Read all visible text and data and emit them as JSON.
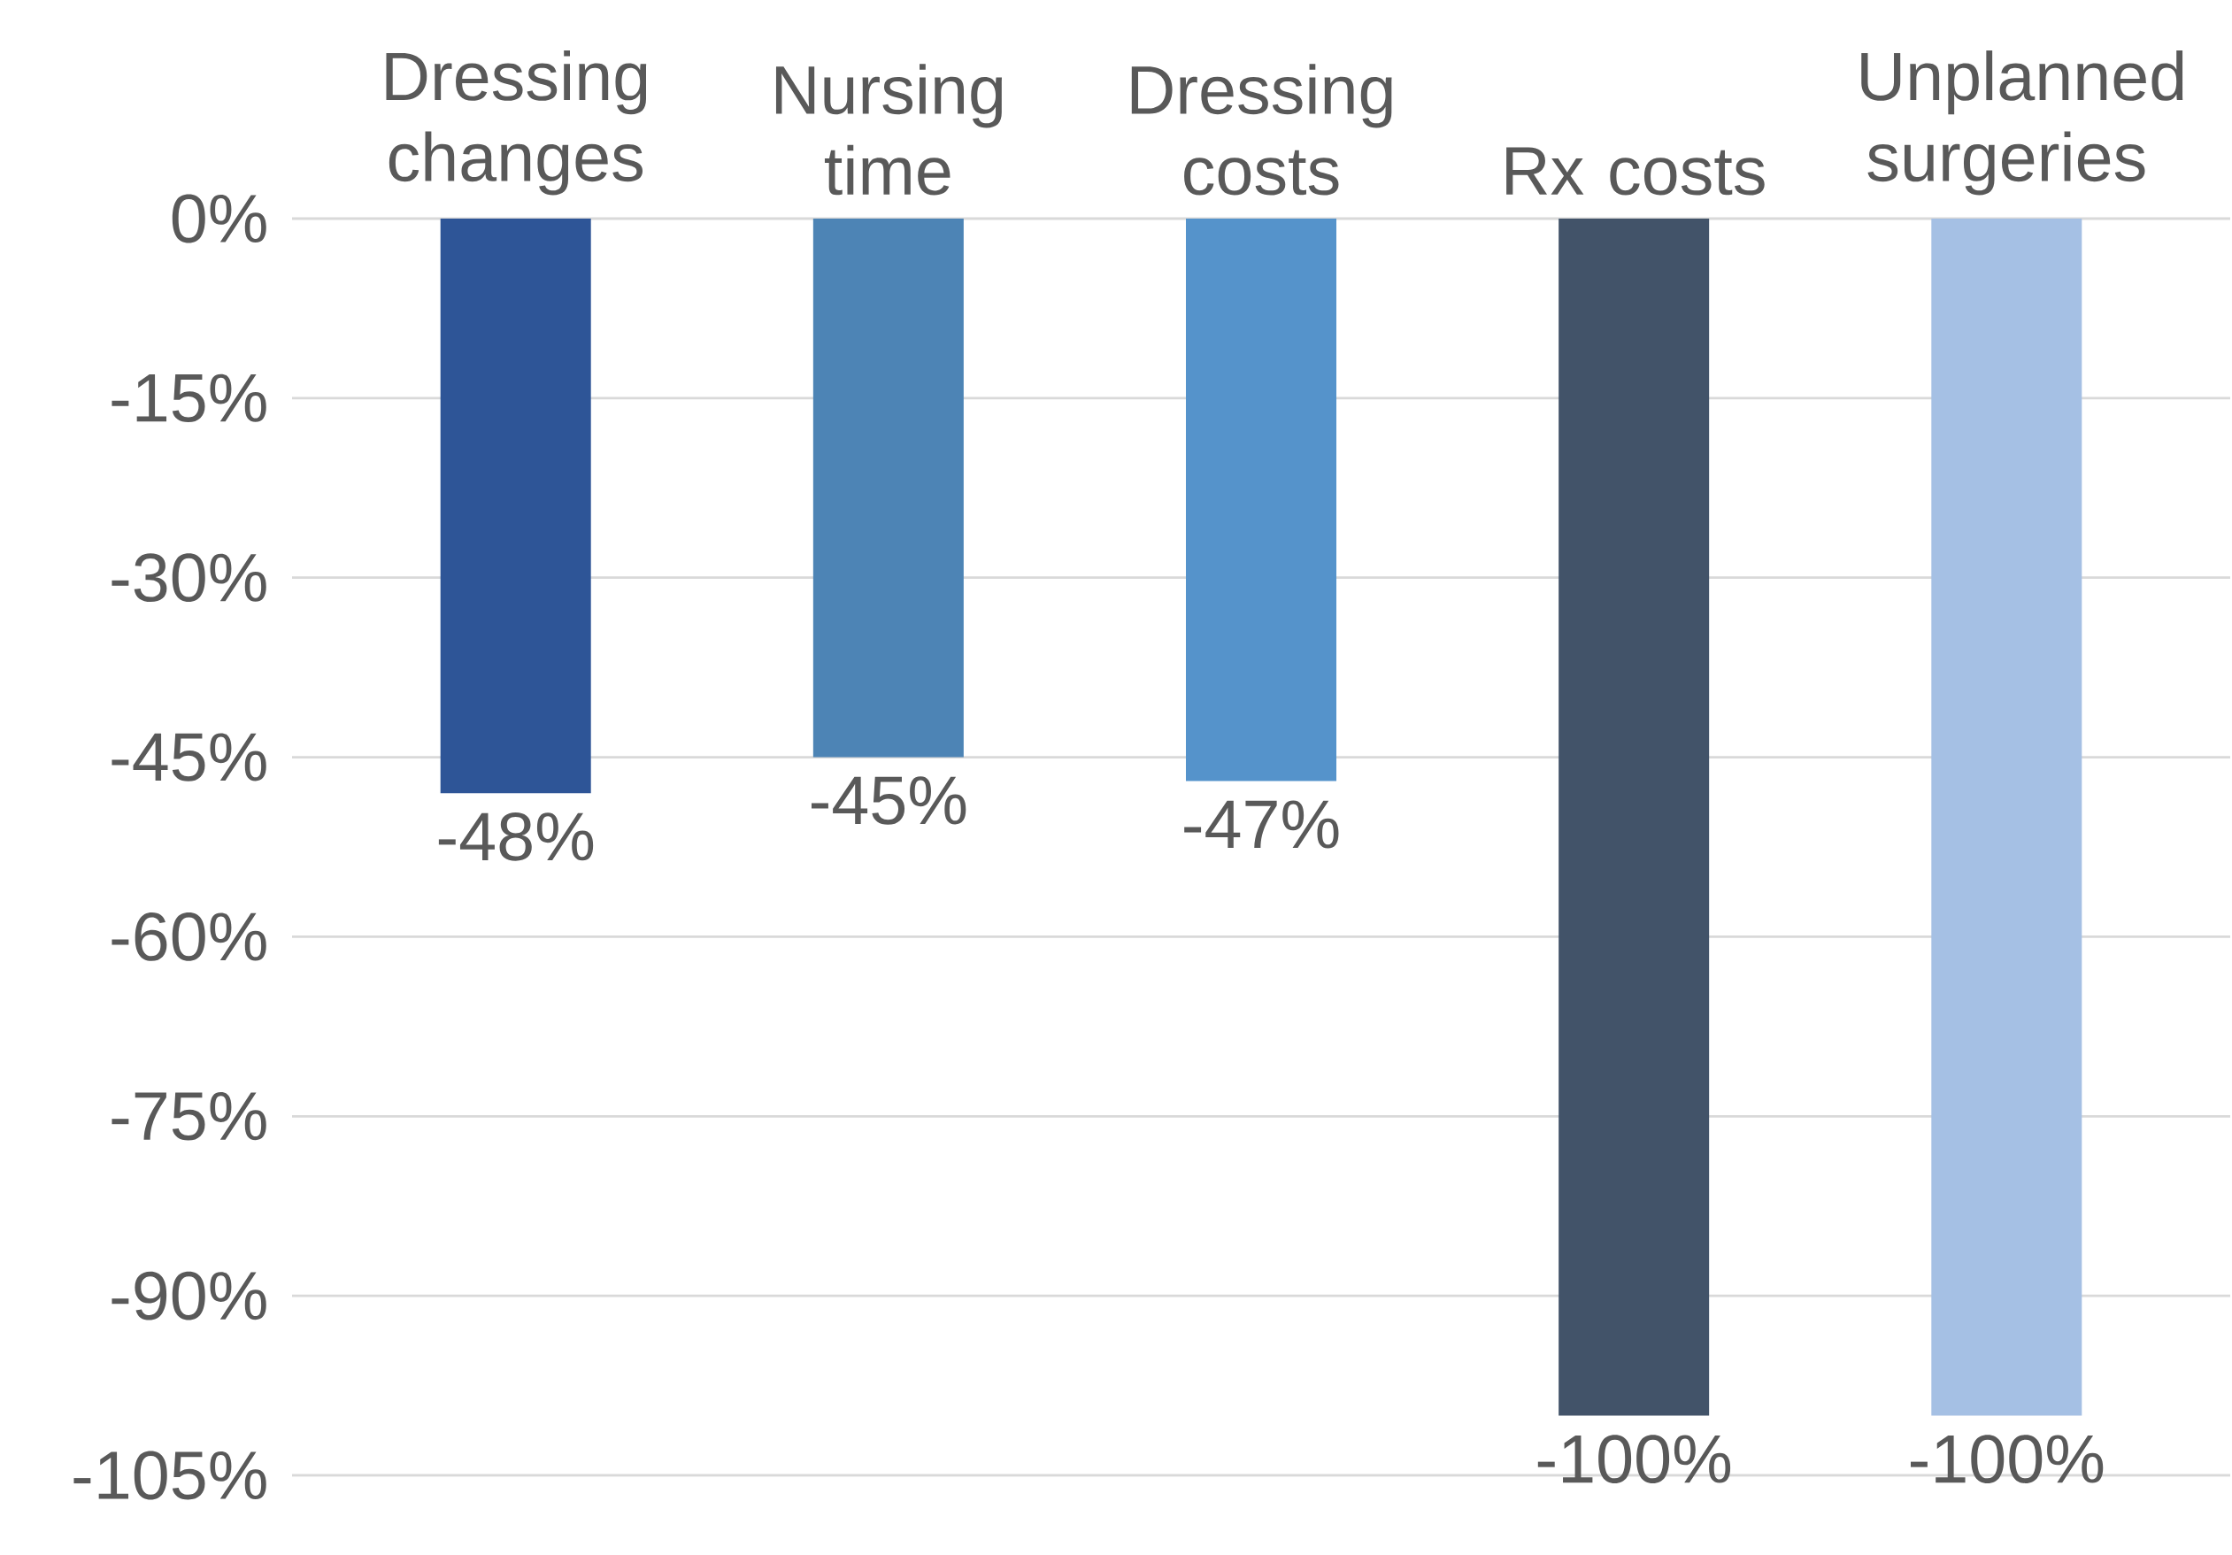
{
  "chart_data": {
    "type": "bar",
    "categories": [
      "Dressing changes",
      "Nursing time",
      "Dressing costs",
      "Rx costs",
      "Unplanned surgeries"
    ],
    "values": [
      -48,
      -45,
      -47,
      -100,
      -100
    ],
    "colors": [
      "#2e5597",
      "#4d84b5",
      "#5593cb",
      "#425369",
      "#a5c0e4"
    ],
    "data_labels": true,
    "value_labels": [
      "-48%",
      "-45%",
      "-47%",
      "-100%",
      "-100%"
    ],
    "ylim": [
      -105,
      0
    ],
    "yticks": [
      {
        "value": 0,
        "label": "0%"
      },
      {
        "value": -15,
        "label": "-15%"
      },
      {
        "value": -30,
        "label": "-30%"
      },
      {
        "value": -45,
        "label": "-45%"
      },
      {
        "value": -60,
        "label": "-60%"
      },
      {
        "value": -75,
        "label": "-75%"
      },
      {
        "value": -90,
        "label": "-90%"
      },
      {
        "value": -105,
        "label": "-105%"
      }
    ],
    "grid": "y"
  }
}
